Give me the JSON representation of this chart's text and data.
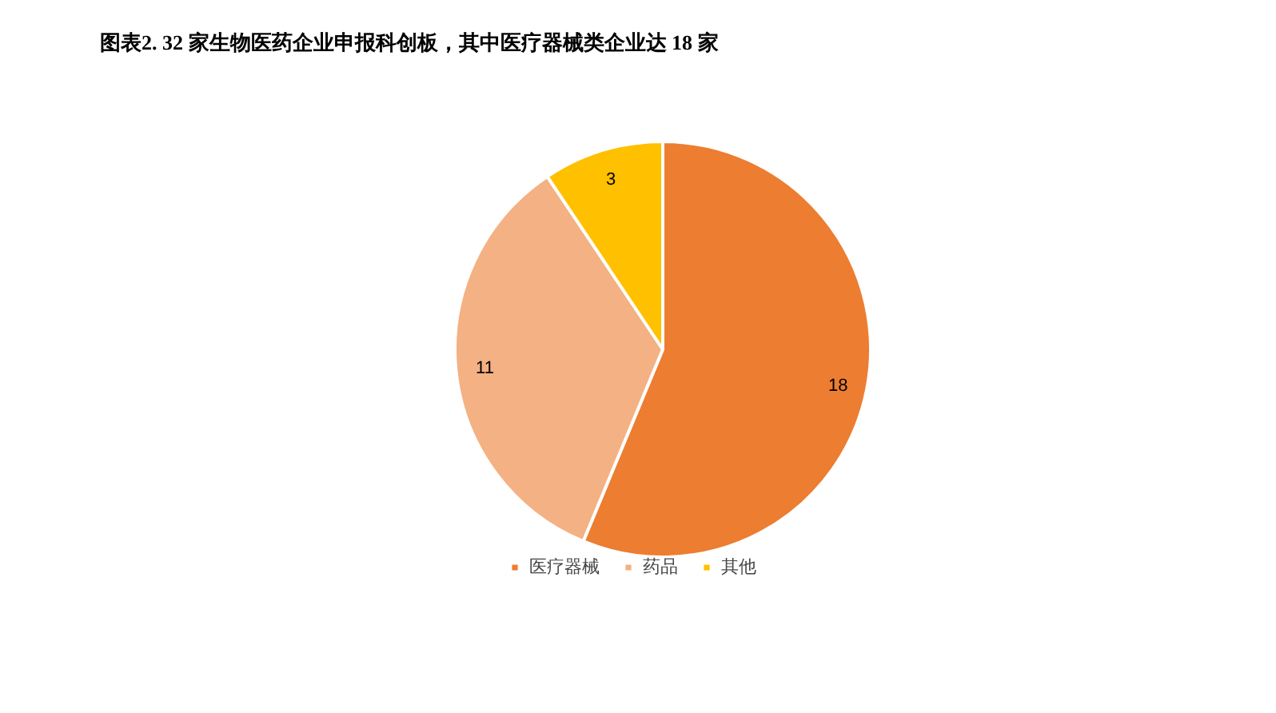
{
  "chart_data": {
    "type": "pie",
    "title": "图表2. 32 家生物医药企业申报科创板，其中医疗器械类企业达 18 家",
    "categories": [
      "医疗器械",
      "药品",
      "其他"
    ],
    "values": [
      18,
      11,
      3
    ],
    "colors": [
      "#ed7d31",
      "#f4b183",
      "#ffc000"
    ],
    "data_labels": true,
    "legend": "bottom"
  }
}
